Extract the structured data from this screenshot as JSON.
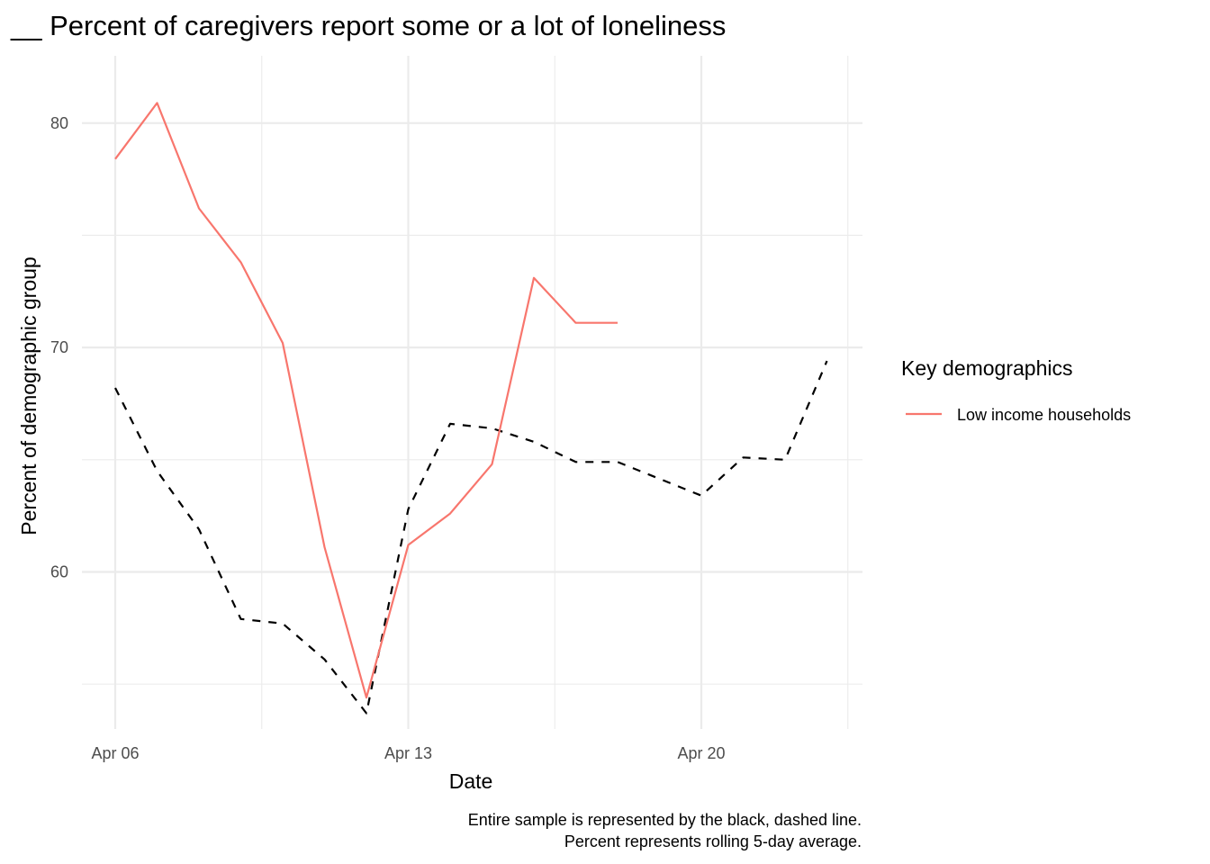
{
  "chart_data": {
    "type": "line",
    "title": "__ Percent of caregivers report some or a lot of loneliness",
    "xlabel": "Date",
    "ylabel": "Percent of demographic group",
    "caption": [
      "Entire sample is represented by the black, dashed line.",
      "Percent represents rolling 5-day average."
    ],
    "x_dates": [
      "Apr 06",
      "Apr 07",
      "Apr 08",
      "Apr 09",
      "Apr 10",
      "Apr 11",
      "Apr 12",
      "Apr 13",
      "Apr 14",
      "Apr 15",
      "Apr 16",
      "Apr 17",
      "Apr 18",
      "Apr 19",
      "Apr 20",
      "Apr 21",
      "Apr 22",
      "Apr 23"
    ],
    "x_tick_labels": [
      "Apr 06",
      "Apr 13",
      "Apr 20"
    ],
    "x_tick_indices": [
      0,
      7,
      14
    ],
    "x_minor_indices": [
      3.5,
      10.5,
      17.5
    ],
    "xlim": [
      -1,
      18
    ],
    "ylim": [
      53.0,
      83.0
    ],
    "y_ticks": [
      60,
      70,
      80
    ],
    "y_tick_labels": [
      "60",
      "70",
      "80"
    ],
    "y_minor_ticks": [
      55,
      65,
      75
    ],
    "legend": {
      "title": "Key demographics",
      "position": "right",
      "entries": [
        "Low income households"
      ]
    },
    "series": [
      {
        "name": "Low income households",
        "color": "#F8766D",
        "dash": "solid",
        "values": [
          78.4,
          80.9,
          76.2,
          73.8,
          70.2,
          61.1,
          54.4,
          61.2,
          62.6,
          64.8,
          73.1,
          71.1,
          71.1,
          null,
          null,
          null,
          null,
          null
        ]
      },
      {
        "name": "Entire sample",
        "color": "#000000",
        "dash": "dashed",
        "values": [
          68.2,
          64.5,
          61.9,
          57.9,
          57.7,
          56.1,
          53.7,
          62.8,
          66.6,
          66.4,
          65.8,
          64.9,
          64.9,
          null,
          63.4,
          65.1,
          65.0,
          69.4
        ]
      }
    ]
  }
}
